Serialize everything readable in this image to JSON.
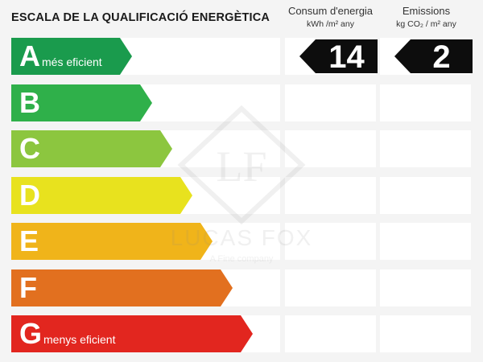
{
  "title": "ESCALA DE LA QUALIFICACIÓ ENERGÈTICA",
  "columns": {
    "consum": {
      "label": "Consum d'energia",
      "unit": "kWh /m² any"
    },
    "emissions": {
      "label": "Emissions",
      "unit": "kg CO₂ / m² any"
    }
  },
  "ratings": [
    {
      "letter": "A",
      "sub": "més eficient",
      "color": "#1a9b4d"
    },
    {
      "letter": "B",
      "sub": "",
      "color": "#2fb04a"
    },
    {
      "letter": "C",
      "sub": "",
      "color": "#8cc63f"
    },
    {
      "letter": "D",
      "sub": "",
      "color": "#e8e21e"
    },
    {
      "letter": "E",
      "sub": "",
      "color": "#f0b41a"
    },
    {
      "letter": "F",
      "sub": "",
      "color": "#e2701f"
    },
    {
      "letter": "G",
      "sub": "menys eficient",
      "color": "#e2261f"
    }
  ],
  "values": {
    "consum": "14",
    "emissions": "2",
    "rating": "A"
  },
  "watermark": {
    "brand": "LUCAS FOX",
    "tagline": "A Fine company",
    "monogram": "LF"
  }
}
